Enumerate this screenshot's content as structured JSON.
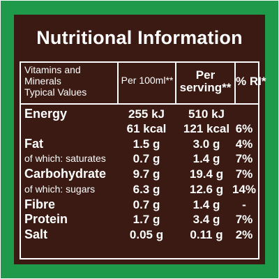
{
  "title": "Nutritional Information",
  "headers": {
    "col1": [
      "Vitamins and",
      "Minerals",
      "Typical Values"
    ],
    "col2": "Per 100ml**",
    "col3": [
      "Per",
      "serving**"
    ],
    "col4": "% RI*"
  },
  "rows": [
    {
      "name": "Energy",
      "per100": "255 kJ",
      "serving": "510 kJ",
      "ri": ""
    },
    {
      "name": "",
      "per100": "61 kcal",
      "serving": "121 kcal",
      "ri": "6%"
    },
    {
      "name": "Fat",
      "per100": "1.5 g",
      "serving": "3.0 g",
      "ri": "4%"
    },
    {
      "name": "of which: saturates",
      "per100": "0.7 g",
      "serving": "1.4 g",
      "ri": "7%"
    },
    {
      "name": "Carbohydrate",
      "per100": "9.7 g",
      "serving": "19.4 g",
      "ri": "7%"
    },
    {
      "name": "of which: sugars",
      "per100": "6.3 g",
      "serving": "12.6 g",
      "ri": "14%"
    },
    {
      "name": "Fibre",
      "per100": "0.7 g",
      "serving": "1.4 g",
      "ri": "-"
    },
    {
      "name": "Protein",
      "per100": "1.7 g",
      "serving": "3.4 g",
      "ri": "7%"
    },
    {
      "name": "Salt",
      "per100": "0.05 g",
      "serving": "0.11 g",
      "ri": "2%"
    }
  ],
  "colors": {
    "border": "#1f9a4a",
    "panel": "#3a1a12",
    "text": "#ffffff"
  }
}
